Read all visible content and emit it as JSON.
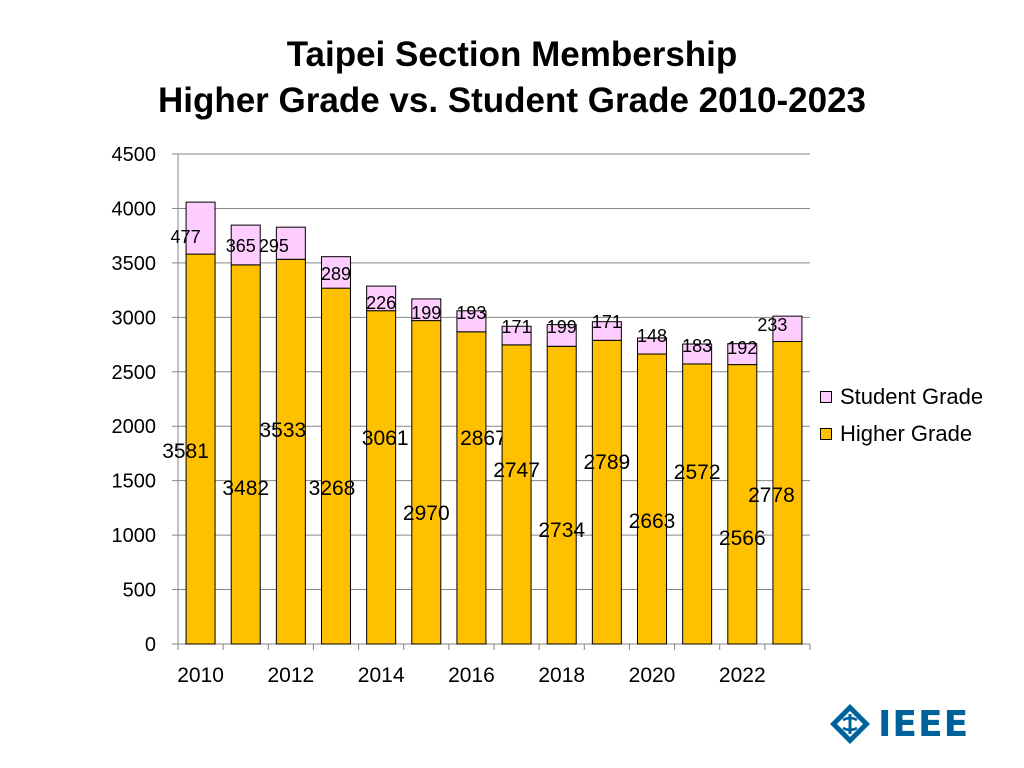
{
  "slide": {
    "title_line1": "Taipei Section Membership",
    "title_line2": "Higher Grade vs. Student Grade 2010-2023"
  },
  "logo": {
    "text": "IEEE",
    "icon": "ieee-diamond-icon",
    "color": "#00629B"
  },
  "chart_data": {
    "type": "bar",
    "stacked": true,
    "categories": [
      "2010",
      "2011",
      "2012",
      "2013",
      "2014",
      "2015",
      "2016",
      "2017",
      "2018",
      "2019",
      "2020",
      "2021",
      "2022",
      "2023"
    ],
    "x_tick_labels": [
      "2010",
      "2012",
      "2014",
      "2016",
      "2018",
      "2020",
      "2022"
    ],
    "series": [
      {
        "name": "Higher Grade",
        "color": "#FFC000",
        "values": [
          3581,
          3482,
          3533,
          3268,
          3061,
          2970,
          2867,
          2747,
          2734,
          2789,
          2663,
          2572,
          2566,
          2778
        ]
      },
      {
        "name": "Student Grade",
        "color": "#FFCCFF",
        "values": [
          477,
          365,
          295,
          289,
          226,
          199,
          193,
          171,
          199,
          171,
          148,
          183,
          192,
          233
        ]
      }
    ],
    "ylim": [
      0,
      4500
    ],
    "yticks": [
      0,
      500,
      1000,
      1500,
      2000,
      2500,
      3000,
      3500,
      4000,
      4500
    ],
    "grid": true,
    "legend": "right",
    "xlabel": "",
    "ylabel": ""
  }
}
